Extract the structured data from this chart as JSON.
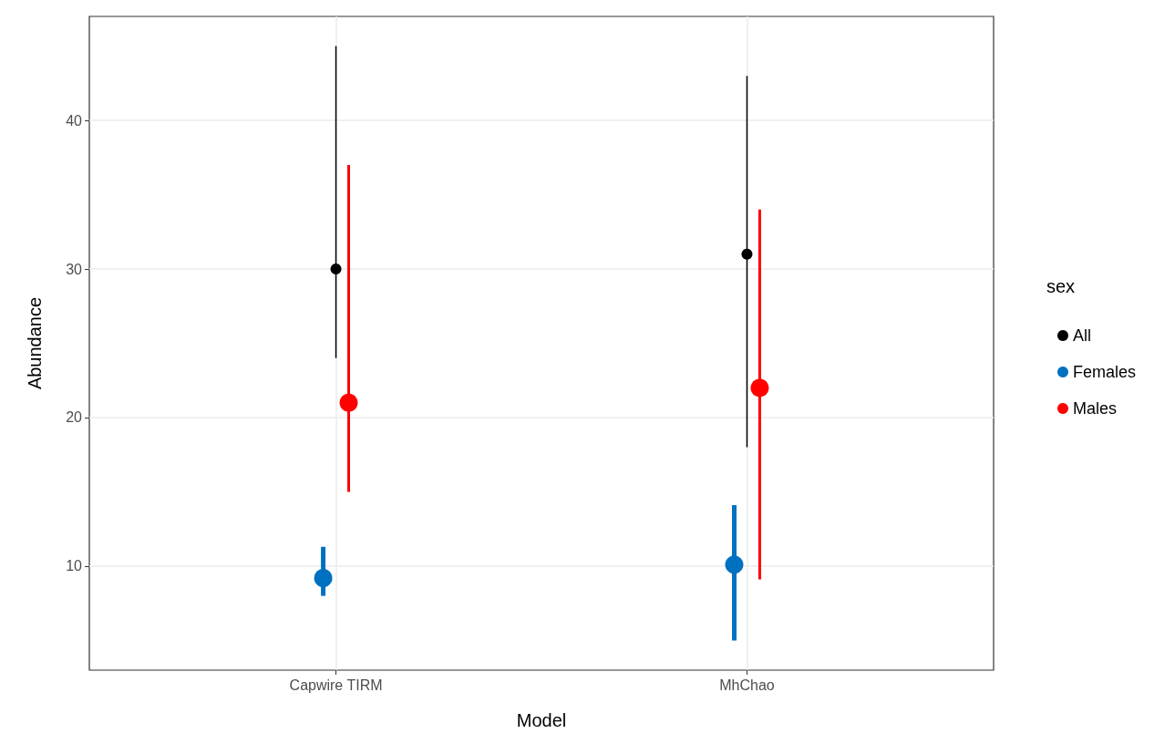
{
  "chart_data": {
    "type": "scatter",
    "xlabel": "Model",
    "ylabel": "Abundance",
    "legend_title": "sex",
    "categories": [
      "Capwire TIRM",
      "MhChao"
    ],
    "series": [
      {
        "name": "All",
        "color": "#000000",
        "values": [
          30,
          31
        ],
        "errors": [
          [
            24,
            45
          ],
          [
            18,
            43
          ]
        ]
      },
      {
        "name": "Females",
        "color": "#0070c0",
        "values": [
          9.2,
          10.1
        ],
        "errors": [
          [
            8,
            11.3
          ],
          [
            5,
            14.1
          ]
        ]
      },
      {
        "name": "Males",
        "color": "#ff0000",
        "values": [
          21,
          22
        ],
        "errors": [
          [
            15,
            37
          ],
          [
            9.1,
            34
          ]
        ]
      }
    ],
    "ylim": [
      3,
      47
    ],
    "yticks": [
      10,
      20,
      30,
      40
    ],
    "grid": true,
    "legend": "right",
    "marker": "circle"
  }
}
